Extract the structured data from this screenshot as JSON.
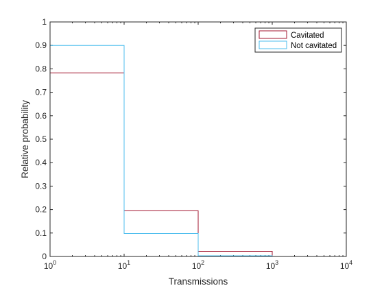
{
  "chart_data": {
    "type": "histogram-stairs",
    "xlabel": "Transmissions",
    "ylabel": "Relative probability",
    "xscale": "log",
    "xlim": [
      1,
      10000
    ],
    "ylim": [
      0,
      1
    ],
    "bin_edges": [
      1,
      10,
      100,
      1000
    ],
    "xticks": [
      {
        "value": 1,
        "base": "10",
        "exp": "0"
      },
      {
        "value": 10,
        "base": "10",
        "exp": "1"
      },
      {
        "value": 100,
        "base": "10",
        "exp": "2"
      },
      {
        "value": 1000,
        "base": "10",
        "exp": "3"
      },
      {
        "value": 10000,
        "base": "10",
        "exp": "4"
      }
    ],
    "yticks": [
      {
        "value": 0,
        "label": "0"
      },
      {
        "value": 0.1,
        "label": "0.1"
      },
      {
        "value": 0.2,
        "label": "0.2"
      },
      {
        "value": 0.3,
        "label": "0.3"
      },
      {
        "value": 0.4,
        "label": "0.4"
      },
      {
        "value": 0.5,
        "label": "0.5"
      },
      {
        "value": 0.6,
        "label": "0.6"
      },
      {
        "value": 0.7,
        "label": "0.7"
      },
      {
        "value": 0.8,
        "label": "0.8"
      },
      {
        "value": 0.9,
        "label": "0.9"
      },
      {
        "value": 1,
        "label": "1"
      }
    ],
    "series": [
      {
        "name": "Cavitated",
        "color": "#a2142f",
        "values": [
          0.783,
          0.195,
          0.022
        ]
      },
      {
        "name": "Not cavitated",
        "color": "#4dbeee",
        "values": [
          0.9,
          0.098,
          0.003
        ]
      }
    ],
    "grid": false,
    "legend_position": "top-right"
  }
}
